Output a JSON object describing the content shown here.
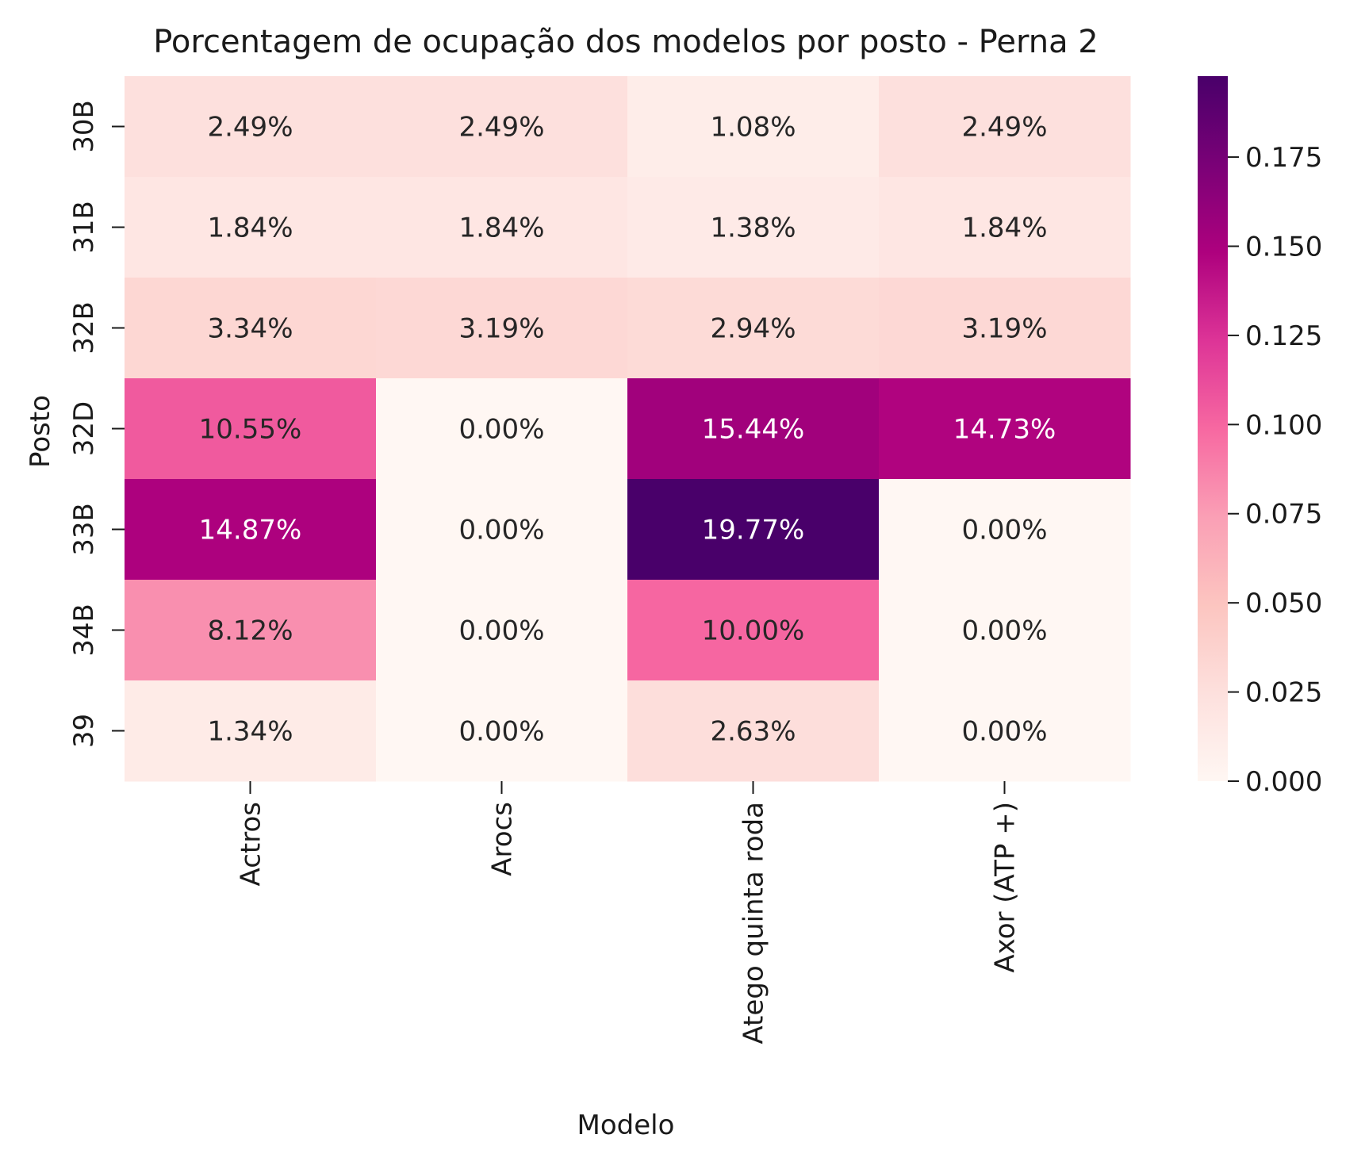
{
  "chart_data": {
    "type": "heatmap",
    "title": "Porcentagem de ocupação dos modelos por posto - Perna 2",
    "xlabel": "Modelo",
    "ylabel": "Posto",
    "x_categories": [
      "Actros",
      "Arocs",
      "Atego quinta roda",
      "Axor (ATP +)"
    ],
    "y_categories": [
      "30B",
      "31B",
      "32B",
      "32D",
      "33B",
      "34B",
      "39"
    ],
    "values": [
      [
        0.0249,
        0.0249,
        0.0108,
        0.0249
      ],
      [
        0.0184,
        0.0184,
        0.0138,
        0.0184
      ],
      [
        0.0334,
        0.0319,
        0.0294,
        0.0319
      ],
      [
        0.1055,
        0.0,
        0.1544,
        0.1473
      ],
      [
        0.1487,
        0.0,
        0.1977,
        0.0
      ],
      [
        0.0812,
        0.0,
        0.1,
        0.0
      ],
      [
        0.0134,
        0.0,
        0.0263,
        0.0
      ]
    ],
    "annotations": [
      [
        "2.49%",
        "2.49%",
        "1.08%",
        "2.49%"
      ],
      [
        "1.84%",
        "1.84%",
        "1.38%",
        "1.84%"
      ],
      [
        "3.34%",
        "3.19%",
        "2.94%",
        "3.19%"
      ],
      [
        "10.55%",
        "0.00%",
        "15.44%",
        "14.73%"
      ],
      [
        "14.87%",
        "0.00%",
        "19.77%",
        "0.00%"
      ],
      [
        "8.12%",
        "0.00%",
        "10.00%",
        "0.00%"
      ],
      [
        "1.34%",
        "0.00%",
        "2.63%",
        "0.00%"
      ]
    ],
    "colorbar": {
      "colormap": "RdPu",
      "vmin": 0.0,
      "vmax": 0.1977,
      "ticks": [
        0.0,
        0.025,
        0.05,
        0.075,
        0.1,
        0.125,
        0.15,
        0.175
      ],
      "tick_labels": [
        "0.000",
        "0.025",
        "0.050",
        "0.075",
        "0.100",
        "0.125",
        "0.150",
        "0.175"
      ]
    }
  }
}
